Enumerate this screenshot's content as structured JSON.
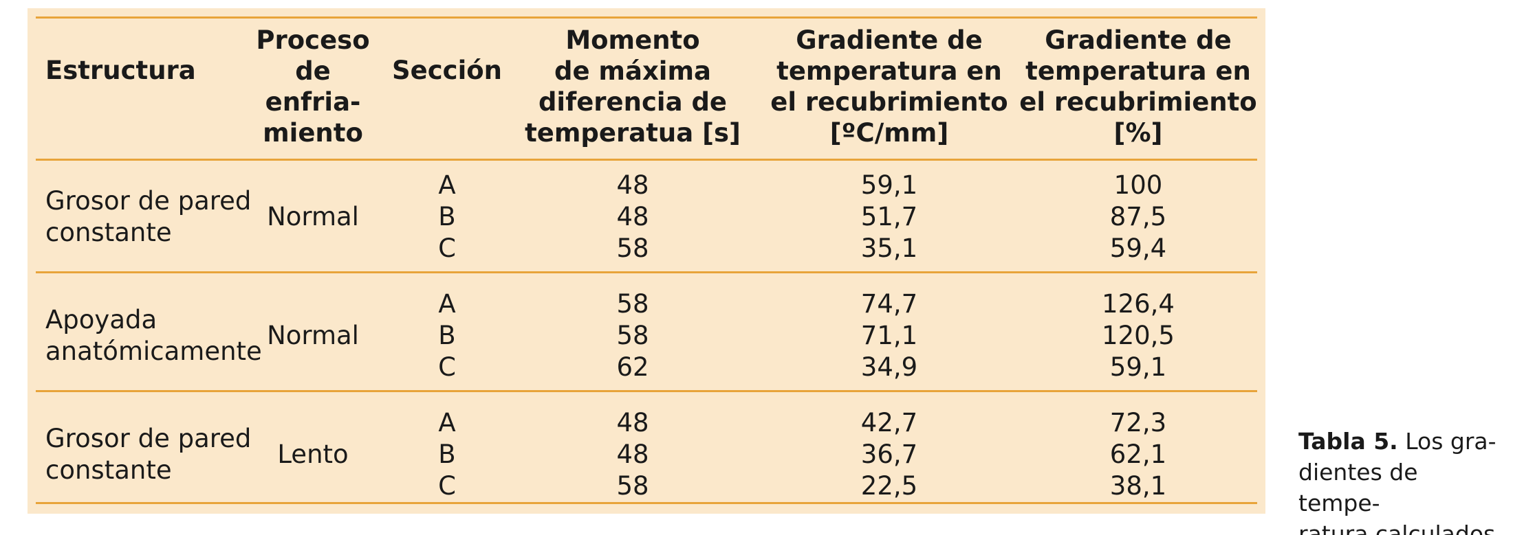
{
  "table": {
    "headers": [
      [
        "Estructura"
      ],
      [
        "Proceso",
        "de",
        "enfria-",
        "miento"
      ],
      [
        "Sección"
      ],
      [
        "Momento",
        "de máxima",
        "diferencia de",
        "temperatua [s]"
      ],
      [
        "Gradiente de",
        "temperatura en",
        "el recubrimiento",
        "[ºC/mm]"
      ],
      [
        "Gradiente de",
        "temperatura en",
        "el recubrimiento",
        "[%]"
      ]
    ],
    "groups": [
      {
        "estructura": [
          "Grosor de pared",
          "constante"
        ],
        "proceso": "Normal",
        "secciones": [
          "A",
          "B",
          "C"
        ],
        "momento": [
          "48",
          "48",
          "58"
        ],
        "gradiente_c": [
          "59,1",
          "51,7",
          "35,1"
        ],
        "gradiente_pct": [
          "100",
          "87,5",
          "59,4"
        ]
      },
      {
        "estructura": [
          "Apoyada",
          "anatómicamente"
        ],
        "proceso": "Normal",
        "secciones": [
          "A",
          "B",
          "C"
        ],
        "momento": [
          "58",
          "58",
          "62"
        ],
        "gradiente_c": [
          "74,7",
          "71,1",
          "34,9"
        ],
        "gradiente_pct": [
          "126,4",
          "120,5",
          "59,1"
        ]
      },
      {
        "estructura": [
          "Grosor de pared",
          "constante"
        ],
        "proceso": "Lento",
        "secciones": [
          "A",
          "B",
          "C"
        ],
        "momento": [
          "48",
          "48",
          "58"
        ],
        "gradiente_c": [
          "42,7",
          "36,7",
          "22,5"
        ],
        "gradiente_pct": [
          "72,3",
          "62,1",
          "38,1"
        ]
      }
    ]
  },
  "caption": {
    "label": "Tabla 5.",
    "lines": [
      "Los gra-",
      "dientes de tempe-",
      "ratura calculados"
    ]
  },
  "colors": {
    "panel": "#fbe8cb",
    "rule": "#e8a43a"
  }
}
